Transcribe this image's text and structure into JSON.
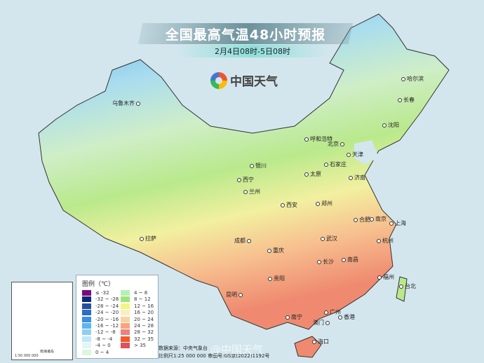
{
  "header": {
    "title": "全国最高气温48小时预报",
    "subtitle": "2月4日08时-5日08时",
    "brand": "中国天气"
  },
  "cities": [
    {
      "name": "乌鲁木齐",
      "pos": "l"
    },
    {
      "name": "哈尔滨"
    },
    {
      "name": "长春"
    },
    {
      "name": "沈阳"
    },
    {
      "name": "呼和浩特"
    },
    {
      "name": "北京",
      "pos": "l"
    },
    {
      "name": "天津"
    },
    {
      "name": "石家庄"
    },
    {
      "name": "太原"
    },
    {
      "name": "济南"
    },
    {
      "name": "银川"
    },
    {
      "name": "西宁"
    },
    {
      "name": "兰州"
    },
    {
      "name": "西安"
    },
    {
      "name": "郑州"
    },
    {
      "name": "合肥"
    },
    {
      "name": "南京"
    },
    {
      "name": "上海"
    },
    {
      "name": "武汉"
    },
    {
      "name": "杭州"
    },
    {
      "name": "成都",
      "pos": "l"
    },
    {
      "name": "重庆"
    },
    {
      "name": "拉萨"
    },
    {
      "name": "长沙"
    },
    {
      "name": "南昌"
    },
    {
      "name": "贵阳"
    },
    {
      "name": "福州"
    },
    {
      "name": "台北"
    },
    {
      "name": "昆明",
      "pos": "l"
    },
    {
      "name": "南宁"
    },
    {
      "name": "广州"
    },
    {
      "name": "香港"
    },
    {
      "name": "澳门",
      "pos": "l"
    },
    {
      "name": "海口"
    }
  ],
  "legend": {
    "title": "图例（℃）",
    "items": [
      {
        "label": "≤ -32",
        "color": "#7a0a7a"
      },
      {
        "label": "-32 ~ -28",
        "color": "#0b2a78"
      },
      {
        "label": "-28 ~ -24",
        "color": "#254f9e"
      },
      {
        "label": "-24 ~ -20",
        "color": "#2f6cc4"
      },
      {
        "label": "-20 ~ -16",
        "color": "#3a8fe0"
      },
      {
        "label": "-16 ~ -12",
        "color": "#5cb6ef"
      },
      {
        "label": "-12 ~ -8",
        "color": "#8fd0f0"
      },
      {
        "label": "-8 ~ -4",
        "color": "#bfe9f5"
      },
      {
        "label": "-4 ~ 0",
        "color": "#e2f6f8"
      },
      {
        "label": "0 ~ 4",
        "color": "#dcf5dc"
      },
      {
        "label": "4 ~ 8",
        "color": "#b6efb6"
      },
      {
        "label": "8 ~ 12",
        "color": "#9de37a"
      },
      {
        "label": "12 ~ 16",
        "color": "#f2f57f"
      },
      {
        "label": "16 ~ 20",
        "color": "#fbeec2"
      },
      {
        "label": "20 ~ 24",
        "color": "#f8d2a4"
      },
      {
        "label": "24 ~ 28",
        "color": "#f7a57a"
      },
      {
        "label": "28 ~ 32",
        "color": "#ef8080"
      },
      {
        "label": "32 ~ 35",
        "color": "#ee5a2a"
      },
      {
        "label": "> 35",
        "color": "#e0505e"
      }
    ]
  },
  "inset": {
    "label": "南海诸岛",
    "scale": "1:50 000 000"
  },
  "footer": {
    "source": "数据来源：中央气象台",
    "scale": "比例尺1:25 000 000  审图号:GS京(2022)1192号",
    "watermark": "@中国天气"
  }
}
